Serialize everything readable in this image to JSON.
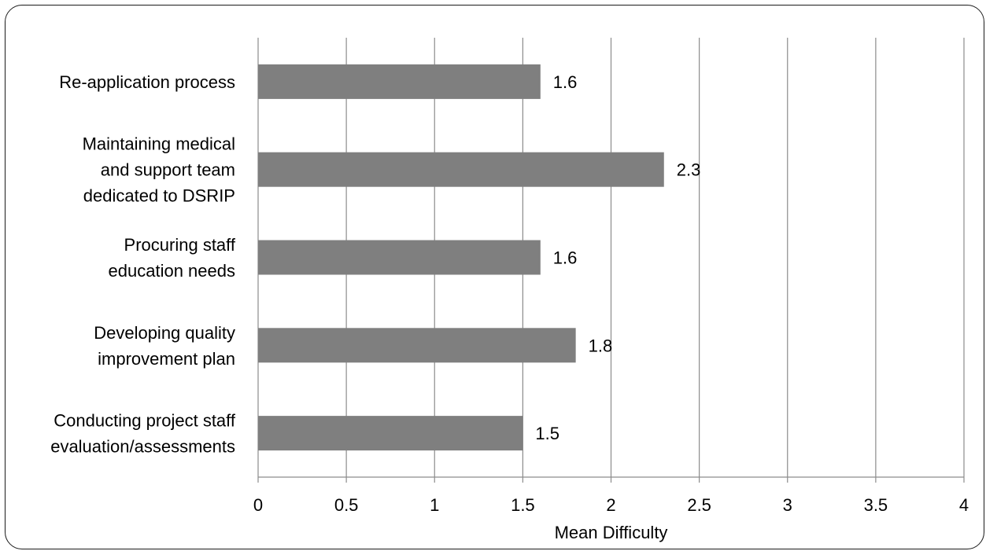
{
  "chart_data": {
    "type": "bar",
    "orientation": "horizontal",
    "categories": [
      [
        "Re-application process"
      ],
      [
        "Maintaining medical",
        "and support team",
        "dedicated to DSRIP"
      ],
      [
        "Procuring staff",
        "education needs"
      ],
      [
        "Developing quality",
        "improvement plan"
      ],
      [
        "Conducting project staff",
        "evaluation/assessments"
      ]
    ],
    "values": [
      1.6,
      2.3,
      1.6,
      1.8,
      1.5
    ],
    "value_labels": [
      "1.6",
      "2.3",
      "1.6",
      "1.8",
      "1.5"
    ],
    "title": "",
    "xlabel": "Mean Difficulty",
    "ylabel": "",
    "xlim": [
      0,
      4
    ],
    "x_ticks": [
      0,
      0.5,
      1,
      1.5,
      2,
      2.5,
      3,
      3.5,
      4
    ],
    "x_tick_labels": [
      "0",
      "0.5",
      "1",
      "1.5",
      "2",
      "2.5",
      "3",
      "3.5",
      "4"
    ],
    "grid": "vertical",
    "legend": "none",
    "bar_color": "#7f7f7f",
    "grid_color": "#8c8c8c"
  }
}
